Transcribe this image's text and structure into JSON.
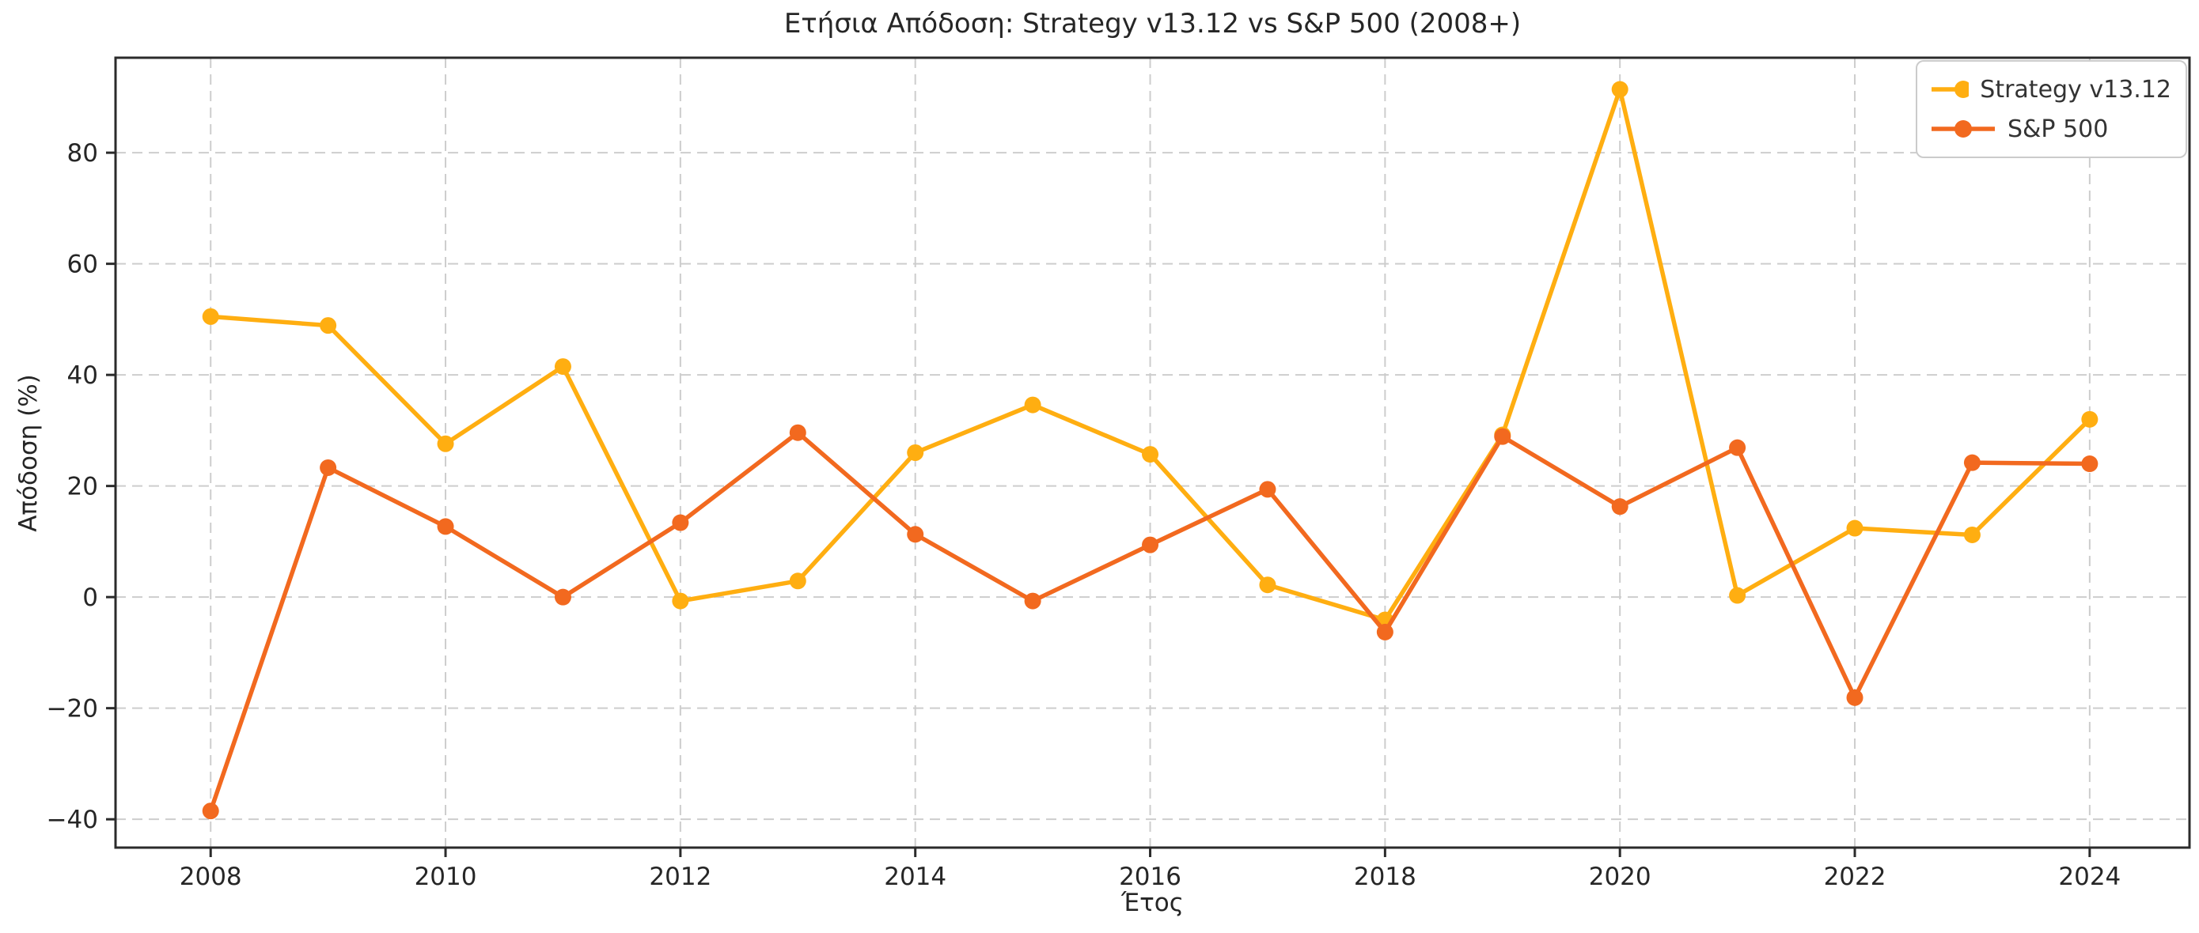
{
  "figure": {
    "background": "#ffffff"
  },
  "colors": {
    "text": "#262626",
    "spine": "#2b2b2b",
    "grid": "#cdcdcd",
    "legend_border": "#cbcbcb",
    "legend_text": "#333333",
    "strategy_line": "#FFAE11",
    "sp500_line": "#F2691F"
  },
  "chart_data": {
    "type": "line",
    "title": "Ετήσια Απόδοση: Strategy v13.12 vs S&P 500 (2008+)",
    "xlabel": "Έτος",
    "ylabel": "Απόδοση (%)",
    "x": [
      2008,
      2009,
      2010,
      2011,
      2012,
      2013,
      2014,
      2015,
      2016,
      2017,
      2018,
      2019,
      2020,
      2021,
      2022,
      2023,
      2024
    ],
    "series": [
      {
        "name": "Strategy v13.12",
        "color": "#FFAE11",
        "values": [
          50.5,
          48.9,
          27.6,
          41.5,
          -0.7,
          2.9,
          26.0,
          34.6,
          25.7,
          2.2,
          -4.1,
          29.2,
          91.4,
          0.3,
          12.4,
          11.2,
          32.0
        ]
      },
      {
        "name": "S&P 500",
        "color": "#F2691F",
        "values": [
          -38.5,
          23.3,
          12.7,
          0.0,
          13.4,
          29.6,
          11.3,
          -0.7,
          9.4,
          19.4,
          -6.3,
          28.9,
          16.3,
          26.9,
          -18.1,
          24.2,
          24.0
        ]
      }
    ],
    "xlim": [
      2007.19,
      2024.85
    ],
    "ylim": [
      -45.1,
      97.1
    ],
    "xticks": [
      2008,
      2010,
      2012,
      2014,
      2016,
      2018,
      2020,
      2022,
      2024
    ],
    "yticks": [
      -40,
      -20,
      0,
      20,
      40,
      60,
      80
    ],
    "grid": true,
    "grid_style": "dashed",
    "legend_position": "upper right",
    "marker": "circle"
  }
}
